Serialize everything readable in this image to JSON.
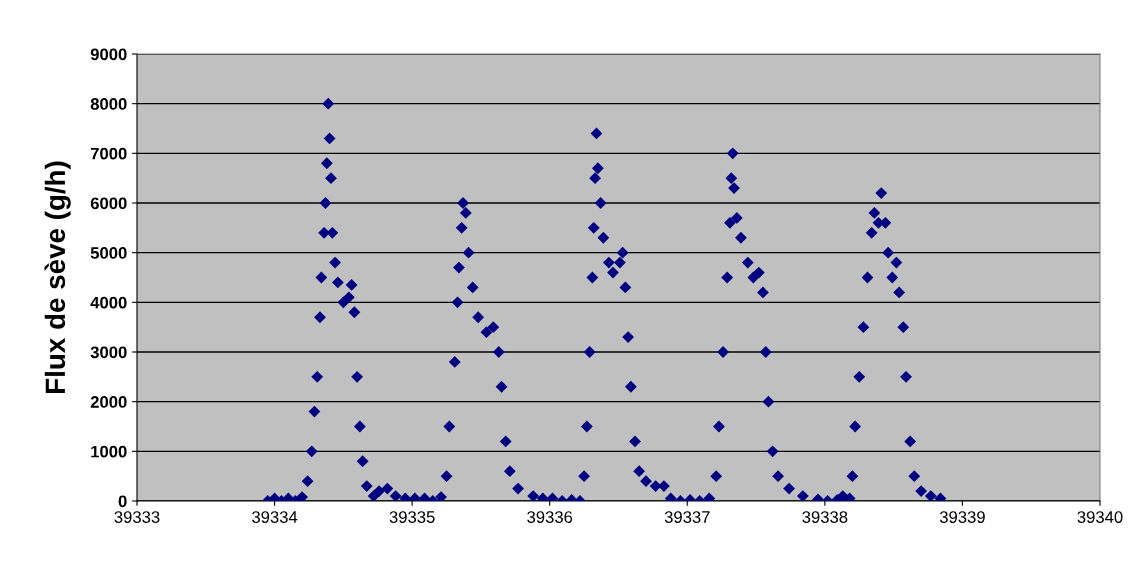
{
  "chart_data": {
    "type": "scatter",
    "ylabel": "Flux de sève (g/h)",
    "xlim": [
      39333,
      39340
    ],
    "xticks": [
      39333,
      39334,
      39335,
      39336,
      39337,
      39338,
      39339,
      39340
    ],
    "ylim": [
      0,
      9000
    ],
    "yticks": [
      0,
      1000,
      2000,
      3000,
      4000,
      5000,
      6000,
      7000,
      8000,
      9000
    ],
    "grid": "y",
    "marker": "diamond",
    "legend": false,
    "series": [
      {
        "color": "#000080",
        "x": [
          39333.95,
          39334.0,
          39334.05,
          39334.1,
          39334.15,
          39334.2,
          39334.24,
          39334.27,
          39334.29,
          39334.31,
          39334.33,
          39334.34,
          39334.36,
          39334.37,
          39334.38,
          39334.39,
          39334.4,
          39334.41,
          39334.42,
          39334.44,
          39334.46,
          39334.5,
          39334.54,
          39334.56,
          39334.58,
          39334.6,
          39334.62,
          39334.64,
          39334.67,
          39334.72,
          39334.76,
          39334.82,
          39334.88,
          39334.95,
          39335.02,
          39335.09,
          39335.15,
          39335.21,
          39335.25,
          39335.27,
          39335.31,
          39335.33,
          39335.34,
          39335.36,
          39335.37,
          39335.39,
          39335.41,
          39335.44,
          39335.48,
          39335.54,
          39335.59,
          39335.63,
          39335.65,
          39335.68,
          39335.71,
          39335.77,
          39335.88,
          39335.95,
          39336.02,
          39336.09,
          39336.16,
          39336.22,
          39336.25,
          39336.27,
          39336.29,
          39336.31,
          39336.32,
          39336.33,
          39336.34,
          39336.35,
          39336.37,
          39336.39,
          39336.43,
          39336.46,
          39336.51,
          39336.53,
          39336.55,
          39336.57,
          39336.59,
          39336.62,
          39336.65,
          39336.7,
          39336.77,
          39336.83,
          39336.88,
          39336.95,
          39337.02,
          39337.09,
          39337.16,
          39337.21,
          39337.23,
          39337.26,
          39337.29,
          39337.31,
          39337.32,
          39337.33,
          39337.34,
          39337.36,
          39337.39,
          39337.44,
          39337.48,
          39337.52,
          39337.55,
          39337.57,
          39337.59,
          39337.62,
          39337.66,
          39337.74,
          39337.84,
          39337.95,
          39338.02,
          39338.09,
          39338.13,
          39338.18,
          39338.2,
          39338.22,
          39338.25,
          39338.28,
          39338.31,
          39338.34,
          39338.36,
          39338.39,
          39338.41,
          39338.44,
          39338.46,
          39338.49,
          39338.52,
          39338.54,
          39338.57,
          39338.59,
          39338.62,
          39338.65,
          39338.7,
          39338.77,
          39338.84
        ],
        "values": [
          0,
          50,
          0,
          50,
          0,
          80,
          400,
          1000,
          1800,
          2500,
          3700,
          4500,
          5400,
          6000,
          6800,
          8000,
          7300,
          6500,
          5400,
          4800,
          4400,
          4000,
          4100,
          4350,
          3800,
          2500,
          1500,
          800,
          300,
          100,
          200,
          250,
          100,
          50,
          50,
          50,
          0,
          80,
          500,
          1500,
          2800,
          4000,
          4700,
          5500,
          6000,
          5800,
          5000,
          4300,
          3700,
          3400,
          3500,
          3000,
          2300,
          1200,
          600,
          250,
          100,
          50,
          50,
          0,
          20,
          0,
          500,
          1500,
          3000,
          4500,
          5500,
          6500,
          7400,
          6700,
          6000,
          5300,
          4800,
          4600,
          4800,
          5000,
          4300,
          3300,
          2300,
          1200,
          600,
          400,
          300,
          300,
          50,
          0,
          20,
          0,
          50,
          500,
          1500,
          3000,
          4500,
          5600,
          6500,
          7000,
          6300,
          5700,
          5300,
          4800,
          4500,
          4600,
          4200,
          3000,
          2000,
          1000,
          500,
          250,
          100,
          30,
          0,
          20,
          100,
          50,
          500,
          1500,
          2500,
          3500,
          4500,
          5400,
          5800,
          5600,
          6200,
          5600,
          5000,
          4500,
          4800,
          4200,
          3500,
          2500,
          1200,
          500,
          200,
          100,
          50
        ]
      }
    ]
  }
}
